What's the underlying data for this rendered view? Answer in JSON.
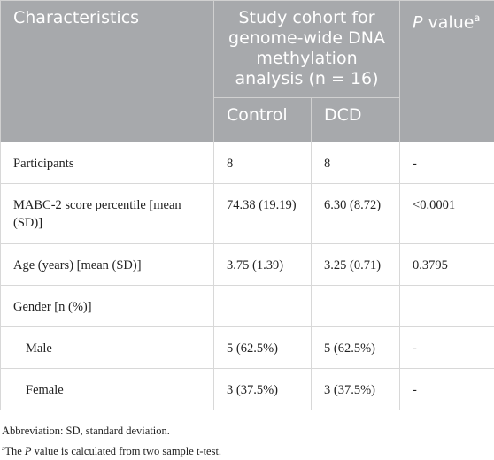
{
  "table": {
    "header": {
      "characteristics": "Characteristics",
      "cohort": "Study cohort for genome-wide DNA methylation analysis (n = 16)",
      "p_value": {
        "italic": "P",
        "text": " value",
        "sup": "a"
      },
      "control": "Control",
      "dcd": "DCD"
    },
    "rows": [
      {
        "label": "Participants",
        "control": "8",
        "dcd": "8",
        "p": "-"
      },
      {
        "label": "MABC-2 score percentile [mean (SD)]",
        "control": "74.38 (19.19)",
        "dcd": "6.30 (8.72)",
        "p": "<0.0001"
      },
      {
        "label": "Age (years) [mean (SD)]",
        "control": "3.75 (1.39)",
        "dcd": "3.25 (0.71)",
        "p": "0.3795"
      },
      {
        "label": "Gender [n (%)]"
      },
      {
        "label": "Male",
        "control": "5 (62.5%)",
        "dcd": "5 (62.5%)",
        "p": "-"
      },
      {
        "label": "Female",
        "control": "3 (37.5%)",
        "dcd": "3 (37.5%)",
        "p": "-"
      }
    ]
  },
  "footnotes": {
    "abbreviation": "Abbreviation: SD, standard deviation.",
    "note": {
      "sup": "a",
      "before": "The ",
      "italic": "P",
      "after": " value is calculated from two sample t-test."
    }
  }
}
